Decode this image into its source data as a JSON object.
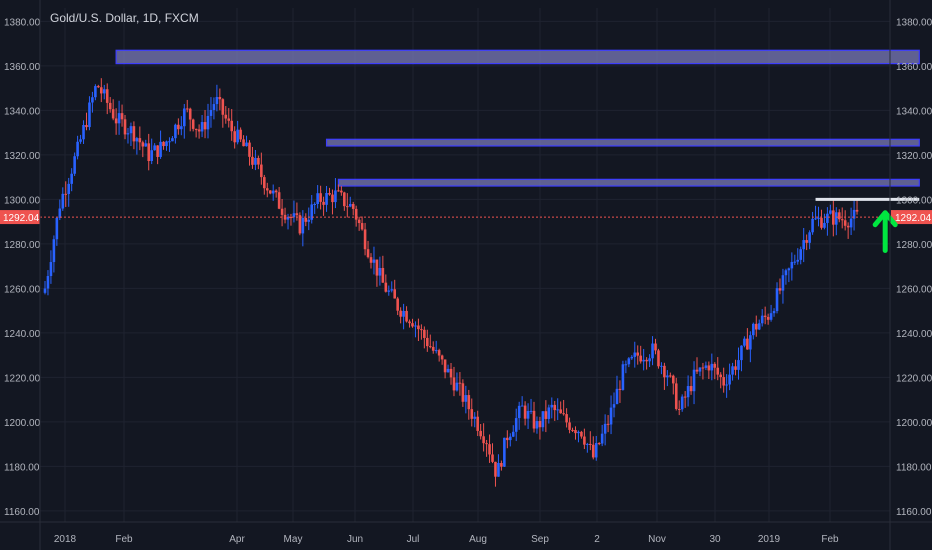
{
  "title": "Gold/U.S. Dollar, 1D, FXCM",
  "colors": {
    "background": "#131722",
    "up": "#2962ff",
    "down": "#ef5350",
    "zone_fill": "#7a7ab8",
    "zone_stroke": "#3d3dff",
    "white_line": "#e0e3eb",
    "arrow": "#00e640",
    "price_line": "#ef5350",
    "axis_text": "#b2b5be"
  },
  "current_price": {
    "value": 1292.04,
    "label": "1292.04"
  },
  "chart_data": {
    "type": "candlestick",
    "title": "Gold/U.S. Dollar, 1D, FXCM",
    "y_ticks": [
      1380.0,
      1360.0,
      1340.0,
      1320.0,
      1300.0,
      1280.0,
      1260.0,
      1240.0,
      1220.0,
      1200.0,
      1180.0,
      1160.0
    ],
    "y_tick_labels": [
      "1380.00",
      "1360.00",
      "1340.00",
      "1320.00",
      "1300.00",
      "1280.00",
      "1260.00",
      "1240.00",
      "1220.00",
      "1200.00",
      "1180.00",
      "1160.00"
    ],
    "x_ticks": [
      "2018",
      "Feb",
      "Apr",
      "May",
      "Jun",
      "Jul",
      "Aug",
      "Sep",
      "2",
      "Nov",
      "30",
      "2019",
      "Feb"
    ],
    "ylim": [
      1155,
      1386
    ],
    "grid": true,
    "close_path": [
      [
        0,
        1260
      ],
      [
        10,
        1298
      ],
      [
        22,
        1322
      ],
      [
        35,
        1352
      ],
      [
        48,
        1336
      ],
      [
        60,
        1330
      ],
      [
        70,
        1320
      ],
      [
        80,
        1324
      ],
      [
        95,
        1340
      ],
      [
        105,
        1330
      ],
      [
        115,
        1345
      ],
      [
        125,
        1332
      ],
      [
        138,
        1320
      ],
      [
        150,
        1306
      ],
      [
        160,
        1296
      ],
      [
        172,
        1288
      ],
      [
        185,
        1300
      ],
      [
        196,
        1302
      ],
      [
        208,
        1296
      ],
      [
        218,
        1278
      ],
      [
        228,
        1262
      ],
      [
        238,
        1252
      ],
      [
        248,
        1246
      ],
      [
        258,
        1236
      ],
      [
        268,
        1226
      ],
      [
        278,
        1216
      ],
      [
        288,
        1204
      ],
      [
        298,
        1192
      ],
      [
        305,
        1176
      ],
      [
        312,
        1194
      ],
      [
        322,
        1206
      ],
      [
        332,
        1198
      ],
      [
        342,
        1206
      ],
      [
        352,
        1200
      ],
      [
        362,
        1196
      ],
      [
        370,
        1184
      ],
      [
        380,
        1200
      ],
      [
        390,
        1222
      ],
      [
        400,
        1230
      ],
      [
        410,
        1232
      ],
      [
        420,
        1222
      ],
      [
        428,
        1205
      ],
      [
        438,
        1220
      ],
      [
        448,
        1226
      ],
      [
        458,
        1218
      ],
      [
        468,
        1228
      ],
      [
        478,
        1242
      ],
      [
        488,
        1248
      ],
      [
        498,
        1262
      ],
      [
        508,
        1276
      ],
      [
        518,
        1290
      ],
      [
        530,
        1292
      ],
      [
        540,
        1291
      ],
      [
        548,
        1292.04
      ]
    ],
    "zones": [
      {
        "x_start": 48,
        "x_end": 590,
        "y_low": 1361,
        "y_high": 1367
      },
      {
        "x_start": 190,
        "x_end": 590,
        "y_low": 1324,
        "y_high": 1327
      },
      {
        "x_start": 198,
        "x_end": 590,
        "y_low": 1306,
        "y_high": 1309
      }
    ],
    "resistance_line": {
      "x_start": 520,
      "x_end": 590,
      "y": 1300
    },
    "arrow": {
      "x": 567,
      "y_top": 1294,
      "y_bottom": 1277
    }
  }
}
